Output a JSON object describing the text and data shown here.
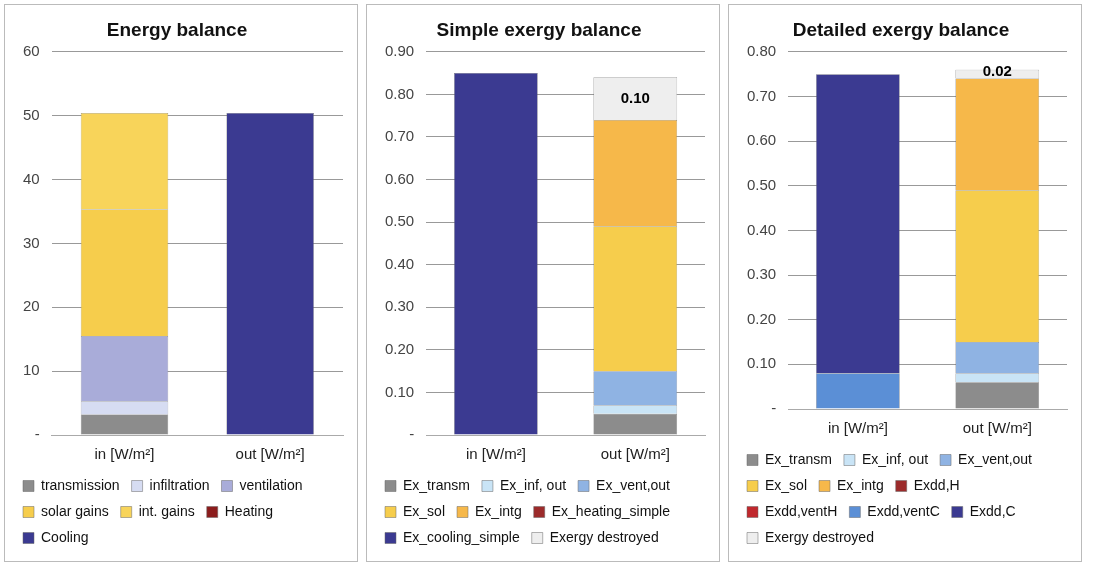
{
  "chart_data": [
    {
      "type": "bar",
      "title": "Energy balance",
      "stacked": true,
      "categories": [
        "in [W/m²]",
        "out [W/m²]"
      ],
      "ylim": [
        0,
        60
      ],
      "yticks": [
        {
          "value": 0,
          "label": "-"
        },
        10,
        20,
        30,
        40,
        50,
        60
      ],
      "grid": "y",
      "legend": "bottom",
      "series": [
        {
          "name": "transmission",
          "color": "#8c8c8c",
          "values": [
            3.2,
            null
          ]
        },
        {
          "name": "infiltration",
          "color": "#d6dcf2",
          "values": [
            2.1,
            null
          ]
        },
        {
          "name": "ventilation",
          "color": "#a9acd9",
          "values": [
            10.2,
            null
          ]
        },
        {
          "name": "solar gains",
          "color": "#f6cd4c",
          "values": [
            19.8,
            null
          ]
        },
        {
          "name": "int. gains",
          "color": "#f8d45a",
          "values": [
            15.1,
            null
          ]
        },
        {
          "name": "Heating",
          "color": "#8b1c1c",
          "values": [
            null,
            null
          ]
        },
        {
          "name": "Cooling",
          "color": "#3b3a91",
          "values": [
            null,
            50.4
          ]
        }
      ]
    },
    {
      "type": "bar",
      "title": "Simple exergy balance",
      "stacked": true,
      "categories": [
        "in [W/m²]",
        "out [W/m²]"
      ],
      "ylim": [
        0,
        0.9
      ],
      "yticks": [
        {
          "value": 0,
          "label": "-"
        },
        {
          "value": 0.1,
          "label": "0.10"
        },
        {
          "value": 0.2,
          "label": "0.20"
        },
        {
          "value": 0.3,
          "label": "0.30"
        },
        {
          "value": 0.4,
          "label": "0.40"
        },
        {
          "value": 0.5,
          "label": "0.50"
        },
        {
          "value": 0.6,
          "label": "0.60"
        },
        {
          "value": 0.7,
          "label": "0.70"
        },
        {
          "value": 0.8,
          "label": "0.80"
        },
        {
          "value": 0.9,
          "label": "0.90"
        }
      ],
      "grid": "y",
      "legend": "bottom",
      "series": [
        {
          "name": "Ex_transm",
          "color": "#8c8c8c",
          "values": [
            null,
            0.05
          ]
        },
        {
          "name": "Ex_inf, out",
          "color": "#c9e4f6",
          "values": [
            null,
            0.02
          ]
        },
        {
          "name": "Ex_vent,out",
          "color": "#8fb3e3",
          "values": [
            null,
            0.08
          ]
        },
        {
          "name": "Ex_sol",
          "color": "#f6cd4c",
          "values": [
            null,
            0.34
          ]
        },
        {
          "name": "Ex_intg",
          "color": "#f6b84a",
          "values": [
            null,
            0.25
          ]
        },
        {
          "name": "Ex_heating_simple",
          "color": "#9c2b2b",
          "values": [
            null,
            null
          ]
        },
        {
          "name": "Ex_cooling_simple",
          "color": "#3b3a91",
          "values": [
            0.85,
            null
          ]
        },
        {
          "name": "Exergy destroyed",
          "color": "#eeeeee",
          "values": [
            null,
            0.1
          ],
          "value_labels": [
            null,
            "0.10"
          ]
        }
      ]
    },
    {
      "type": "bar",
      "title": "Detailed exergy balance",
      "stacked": true,
      "categories": [
        "in [W/m²]",
        "out [W/m²]"
      ],
      "ylim": [
        0,
        0.8
      ],
      "yticks": [
        {
          "value": 0,
          "label": "-"
        },
        {
          "value": 0.1,
          "label": "0.10"
        },
        {
          "value": 0.2,
          "label": "0.20"
        },
        {
          "value": 0.3,
          "label": "0.30"
        },
        {
          "value": 0.4,
          "label": "0.40"
        },
        {
          "value": 0.5,
          "label": "0.50"
        },
        {
          "value": 0.6,
          "label": "0.60"
        },
        {
          "value": 0.7,
          "label": "0.70"
        },
        {
          "value": 0.8,
          "label": "0.80"
        }
      ],
      "grid": "y",
      "legend": "bottom",
      "series": [
        {
          "name": "Ex_transm",
          "color": "#8c8c8c",
          "values": [
            null,
            0.06
          ]
        },
        {
          "name": "Ex_inf, out",
          "color": "#c9e4f6",
          "values": [
            null,
            0.02
          ]
        },
        {
          "name": "Ex_vent,out",
          "color": "#8fb3e3",
          "values": [
            null,
            0.07
          ]
        },
        {
          "name": "Ex_sol",
          "color": "#f6cd4c",
          "values": [
            null,
            0.34
          ]
        },
        {
          "name": "Ex_intg",
          "color": "#f6b84a",
          "values": [
            null,
            0.25
          ]
        },
        {
          "name": "Exdd,H",
          "color": "#9c2b2b",
          "values": [
            null,
            null
          ]
        },
        {
          "name": "Exdd,ventH",
          "color": "#c0282d",
          "values": [
            null,
            null
          ]
        },
        {
          "name": "Exdd,ventC",
          "color": "#5b8fd6",
          "values": [
            0.08,
            null
          ]
        },
        {
          "name": "Exdd,C",
          "color": "#3b3a91",
          "values": [
            0.67,
            null
          ]
        },
        {
          "name": "Exergy destroyed",
          "color": "#eeeeee",
          "values": [
            null,
            0.02
          ],
          "value_labels": [
            null,
            "0.02"
          ]
        }
      ]
    }
  ]
}
